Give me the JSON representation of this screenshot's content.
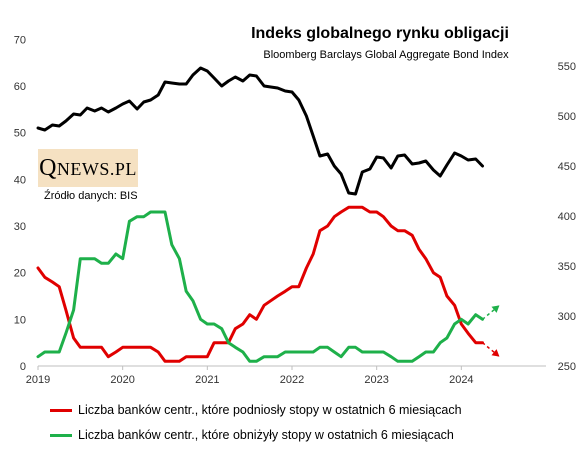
{
  "chart_data": {
    "type": "line",
    "title": "Indeks globalnego rynku obligacji",
    "subtitle": "Bloomberg Barclays Global Aggregate Bond Index",
    "x_ticks": [
      "2019",
      "2020",
      "2021",
      "2022",
      "2023",
      "2024"
    ],
    "y_left_ticks": [
      "0",
      "10",
      "20",
      "30",
      "40",
      "50",
      "60",
      "70"
    ],
    "y_right_ticks": [
      "250",
      "300",
      "350",
      "400",
      "450",
      "500",
      "550"
    ],
    "y_left_lim": [
      0,
      75
    ],
    "y_right_lim": [
      250,
      600
    ],
    "x_lim": [
      2019.0,
      2025.0
    ],
    "series": [
      {
        "name": "Bloomberg Barclays Global Aggregate Bond Index",
        "axis": "right",
        "color": "#000000",
        "x": [
          2019.0,
          2019.08,
          2019.17,
          2019.25,
          2019.33,
          2019.42,
          2019.5,
          2019.58,
          2019.67,
          2019.75,
          2019.83,
          2019.92,
          2020.0,
          2020.08,
          2020.17,
          2020.25,
          2020.33,
          2020.42,
          2020.5,
          2020.58,
          2020.67,
          2020.75,
          2020.83,
          2020.92,
          2021.0,
          2021.08,
          2021.17,
          2021.25,
          2021.33,
          2021.42,
          2021.5,
          2021.58,
          2021.67,
          2021.75,
          2021.83,
          2021.92,
          2022.0,
          2022.08,
          2022.17,
          2022.25,
          2022.33,
          2022.42,
          2022.5,
          2022.58,
          2022.67,
          2022.75,
          2022.83,
          2022.92,
          2023.0,
          2023.08,
          2023.17,
          2023.25,
          2023.33,
          2023.42,
          2023.5,
          2023.58,
          2023.67,
          2023.75,
          2023.83,
          2023.92,
          2024.0,
          2024.08,
          2024.17,
          2024.25
        ],
        "values": [
          488,
          486,
          491,
          490,
          495,
          502,
          501,
          508,
          505,
          508,
          504,
          508,
          512,
          515,
          507,
          514,
          516,
          521,
          534,
          533,
          532,
          532,
          541,
          548,
          545,
          538,
          530,
          535,
          539,
          535,
          541,
          540,
          530,
          529,
          528,
          525,
          524,
          516,
          500,
          480,
          460,
          462,
          450,
          442,
          423,
          422,
          444,
          447,
          459,
          458,
          448,
          460,
          461,
          452,
          453,
          455,
          446,
          440,
          451,
          463,
          460,
          456,
          457,
          450
        ]
      },
      {
        "name": "Liczba banków centr., które podniosły stopy w ostatnich 6 miesiącach",
        "axis": "left",
        "color": "#e00000",
        "x": [
          2019.0,
          2019.08,
          2019.17,
          2019.25,
          2019.33,
          2019.42,
          2019.5,
          2019.58,
          2019.67,
          2019.75,
          2019.83,
          2019.92,
          2020.0,
          2020.08,
          2020.17,
          2020.25,
          2020.33,
          2020.42,
          2020.5,
          2020.58,
          2020.67,
          2020.75,
          2020.83,
          2020.92,
          2021.0,
          2021.08,
          2021.17,
          2021.25,
          2021.33,
          2021.42,
          2021.5,
          2021.58,
          2021.67,
          2021.75,
          2021.83,
          2021.92,
          2022.0,
          2022.08,
          2022.17,
          2022.25,
          2022.33,
          2022.42,
          2022.5,
          2022.58,
          2022.67,
          2022.75,
          2022.83,
          2022.92,
          2023.0,
          2023.08,
          2023.17,
          2023.25,
          2023.33,
          2023.42,
          2023.5,
          2023.58,
          2023.67,
          2023.75,
          2023.83,
          2023.92,
          2024.0,
          2024.08,
          2024.17,
          2024.25
        ],
        "values": [
          21,
          19,
          18,
          17,
          12,
          6,
          4,
          4,
          4,
          4,
          2,
          3,
          4,
          4,
          4,
          4,
          4,
          3,
          1,
          1,
          1,
          2,
          2,
          2,
          2,
          5,
          5,
          5,
          8,
          9,
          11,
          10,
          13,
          14,
          15,
          16,
          17,
          17,
          21,
          24,
          29,
          30,
          32,
          33,
          34,
          34,
          34,
          33,
          33,
          32,
          30,
          29,
          29,
          28,
          25,
          23,
          20,
          19,
          15,
          13,
          9,
          7,
          5,
          5
        ]
      },
      {
        "name": "Liczba banków centr., które obniżyły stopy w ostatnich 6 miesiącach",
        "axis": "left",
        "color": "#1eb04a",
        "x": [
          2019.0,
          2019.08,
          2019.17,
          2019.25,
          2019.33,
          2019.42,
          2019.5,
          2019.58,
          2019.67,
          2019.75,
          2019.83,
          2019.92,
          2020.0,
          2020.08,
          2020.17,
          2020.25,
          2020.33,
          2020.42,
          2020.5,
          2020.58,
          2020.67,
          2020.75,
          2020.83,
          2020.92,
          2021.0,
          2021.08,
          2021.17,
          2021.25,
          2021.33,
          2021.42,
          2021.5,
          2021.58,
          2021.67,
          2021.75,
          2021.83,
          2021.92,
          2022.0,
          2022.08,
          2022.17,
          2022.25,
          2022.33,
          2022.42,
          2022.5,
          2022.58,
          2022.67,
          2022.75,
          2022.83,
          2022.92,
          2023.0,
          2023.08,
          2023.17,
          2023.25,
          2023.33,
          2023.42,
          2023.5,
          2023.58,
          2023.67,
          2023.75,
          2023.83,
          2023.92,
          2024.0,
          2024.08,
          2024.17,
          2024.25
        ],
        "values": [
          2,
          3,
          3,
          3,
          7,
          12,
          23,
          23,
          23,
          22,
          22,
          24,
          23,
          31,
          32,
          32,
          33,
          33,
          33,
          26,
          23,
          16,
          14,
          10,
          9,
          9,
          8,
          5,
          4,
          3,
          1,
          1,
          2,
          2,
          2,
          3,
          3,
          3,
          3,
          3,
          4,
          4,
          3,
          2,
          4,
          4,
          3,
          3,
          3,
          3,
          2,
          1,
          1,
          1,
          2,
          3,
          3,
          5,
          6,
          9,
          10,
          9,
          11,
          10
        ]
      }
    ],
    "trend_arrows": [
      {
        "series": "green",
        "from": [
          2024.25,
          10
        ],
        "to": [
          2024.45,
          13
        ],
        "color": "#1eb04a"
      },
      {
        "series": "red",
        "from": [
          2024.25,
          5
        ],
        "to": [
          2024.45,
          2
        ],
        "color": "#e00000"
      }
    ],
    "grid": false,
    "legend_position": "bottom"
  },
  "logo": {
    "q": "Q",
    "rest": "NEWS.PL"
  },
  "source_text": "Źródło danych: BIS",
  "legend": {
    "red_label": "Liczba banków centr., które podniosły stopy w ostatnich 6 miesiącach",
    "green_label": "Liczba banków centr., które obniżyły stopy w ostatnich 6 miesiącach"
  }
}
